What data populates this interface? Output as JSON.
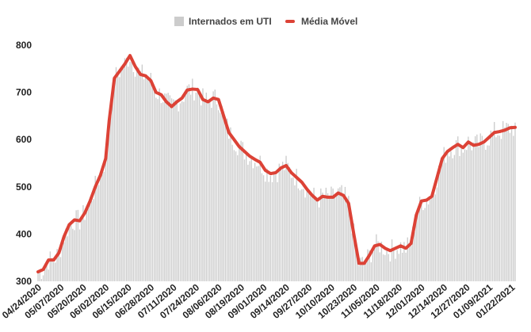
{
  "chart_data": {
    "type": "bar",
    "title": "",
    "xlabel": "",
    "ylabel": "",
    "ylim": [
      300,
      800
    ],
    "yticks": [
      300,
      400,
      500,
      600,
      700,
      800
    ],
    "grid": false,
    "legend_position": "top-center",
    "x_start": "04/24/2020",
    "x_end": "01/24/2021",
    "x_tick_labels": [
      "04/24/2020",
      "05/07/2020",
      "05/20/2020",
      "06/02/2020",
      "06/15/2020",
      "06/28/2020",
      "07/11/2020",
      "07/24/2020",
      "08/06/2020",
      "08/19/2020",
      "09/01/2020",
      "09/14/2020",
      "09/27/2020",
      "10/10/2020",
      "10/23/2020",
      "11/05/2020",
      "11/18/2020",
      "12/01/2020",
      "12/14/2020",
      "12/27/2020",
      "01/09/2021",
      "01/22/2021"
    ],
    "series": [
      {
        "name": "Internados em UTI",
        "type": "bar",
        "color": "#cccccc",
        "note": "daily ICU counts, approximated by the moving average plus noise"
      },
      {
        "name": "Média Móvel",
        "type": "line",
        "color": "#dc4236",
        "points": [
          [
            "04/24/2020",
            320
          ],
          [
            "04/27/2020",
            325
          ],
          [
            "04/30/2020",
            345
          ],
          [
            "05/03/2020",
            345
          ],
          [
            "05/06/2020",
            360
          ],
          [
            "05/09/2020",
            395
          ],
          [
            "05/12/2020",
            420
          ],
          [
            "05/15/2020",
            430
          ],
          [
            "05/18/2020",
            428
          ],
          [
            "05/21/2020",
            445
          ],
          [
            "05/24/2020",
            470
          ],
          [
            "05/27/2020",
            500
          ],
          [
            "05/30/2020",
            525
          ],
          [
            "06/02/2020",
            560
          ],
          [
            "06/04/2020",
            640
          ],
          [
            "06/07/2020",
            730
          ],
          [
            "06/10/2020",
            745
          ],
          [
            "06/13/2020",
            760
          ],
          [
            "06/16/2020",
            778
          ],
          [
            "06/19/2020",
            755
          ],
          [
            "06/22/2020",
            738
          ],
          [
            "06/25/2020",
            735
          ],
          [
            "06/28/2020",
            725
          ],
          [
            "07/01/2020",
            700
          ],
          [
            "07/04/2020",
            695
          ],
          [
            "07/07/2020",
            680
          ],
          [
            "07/10/2020",
            670
          ],
          [
            "07/13/2020",
            680
          ],
          [
            "07/16/2020",
            688
          ],
          [
            "07/19/2020",
            705
          ],
          [
            "07/22/2020",
            707
          ],
          [
            "07/25/2020",
            706
          ],
          [
            "07/28/2020",
            685
          ],
          [
            "07/31/2020",
            680
          ],
          [
            "08/03/2020",
            688
          ],
          [
            "08/06/2020",
            685
          ],
          [
            "08/09/2020",
            650
          ],
          [
            "08/12/2020",
            615
          ],
          [
            "08/15/2020",
            600
          ],
          [
            "08/18/2020",
            585
          ],
          [
            "08/21/2020",
            575
          ],
          [
            "08/24/2020",
            565
          ],
          [
            "08/27/2020",
            558
          ],
          [
            "08/30/2020",
            552
          ],
          [
            "09/02/2020",
            535
          ],
          [
            "09/05/2020",
            528
          ],
          [
            "09/08/2020",
            530
          ],
          [
            "09/11/2020",
            540
          ],
          [
            "09/14/2020",
            545
          ],
          [
            "09/17/2020",
            530
          ],
          [
            "09/20/2020",
            520
          ],
          [
            "09/23/2020",
            510
          ],
          [
            "09/26/2020",
            495
          ],
          [
            "09/29/2020",
            482
          ],
          [
            "10/02/2020",
            472
          ],
          [
            "10/05/2020",
            480
          ],
          [
            "10/08/2020",
            478
          ],
          [
            "10/11/2020",
            478
          ],
          [
            "10/14/2020",
            487
          ],
          [
            "10/17/2020",
            482
          ],
          [
            "10/20/2020",
            465
          ],
          [
            "10/23/2020",
            400
          ],
          [
            "10/26/2020",
            338
          ],
          [
            "10/29/2020",
            338
          ],
          [
            "11/01/2020",
            355
          ],
          [
            "11/04/2020",
            375
          ],
          [
            "11/07/2020",
            378
          ],
          [
            "11/10/2020",
            370
          ],
          [
            "11/13/2020",
            365
          ],
          [
            "11/16/2020",
            370
          ],
          [
            "11/19/2020",
            375
          ],
          [
            "11/22/2020",
            370
          ],
          [
            "11/25/2020",
            380
          ],
          [
            "11/28/2020",
            440
          ],
          [
            "12/01/2020",
            470
          ],
          [
            "12/04/2020",
            472
          ],
          [
            "12/07/2020",
            480
          ],
          [
            "12/10/2020",
            520
          ],
          [
            "12/13/2020",
            560
          ],
          [
            "12/16/2020",
            575
          ],
          [
            "12/19/2020",
            583
          ],
          [
            "12/22/2020",
            590
          ],
          [
            "12/25/2020",
            583
          ],
          [
            "12/28/2020",
            595
          ],
          [
            "12/31/2020",
            588
          ],
          [
            "01/03/2021",
            590
          ],
          [
            "01/06/2021",
            595
          ],
          [
            "01/09/2021",
            605
          ],
          [
            "01/12/2021",
            615
          ],
          [
            "01/15/2021",
            617
          ],
          [
            "01/18/2021",
            620
          ],
          [
            "01/21/2021",
            625
          ],
          [
            "01/24/2021",
            626
          ]
        ]
      }
    ]
  },
  "legend": {
    "bar_label": "Internados em UTI",
    "line_label": "Média Móvel"
  }
}
